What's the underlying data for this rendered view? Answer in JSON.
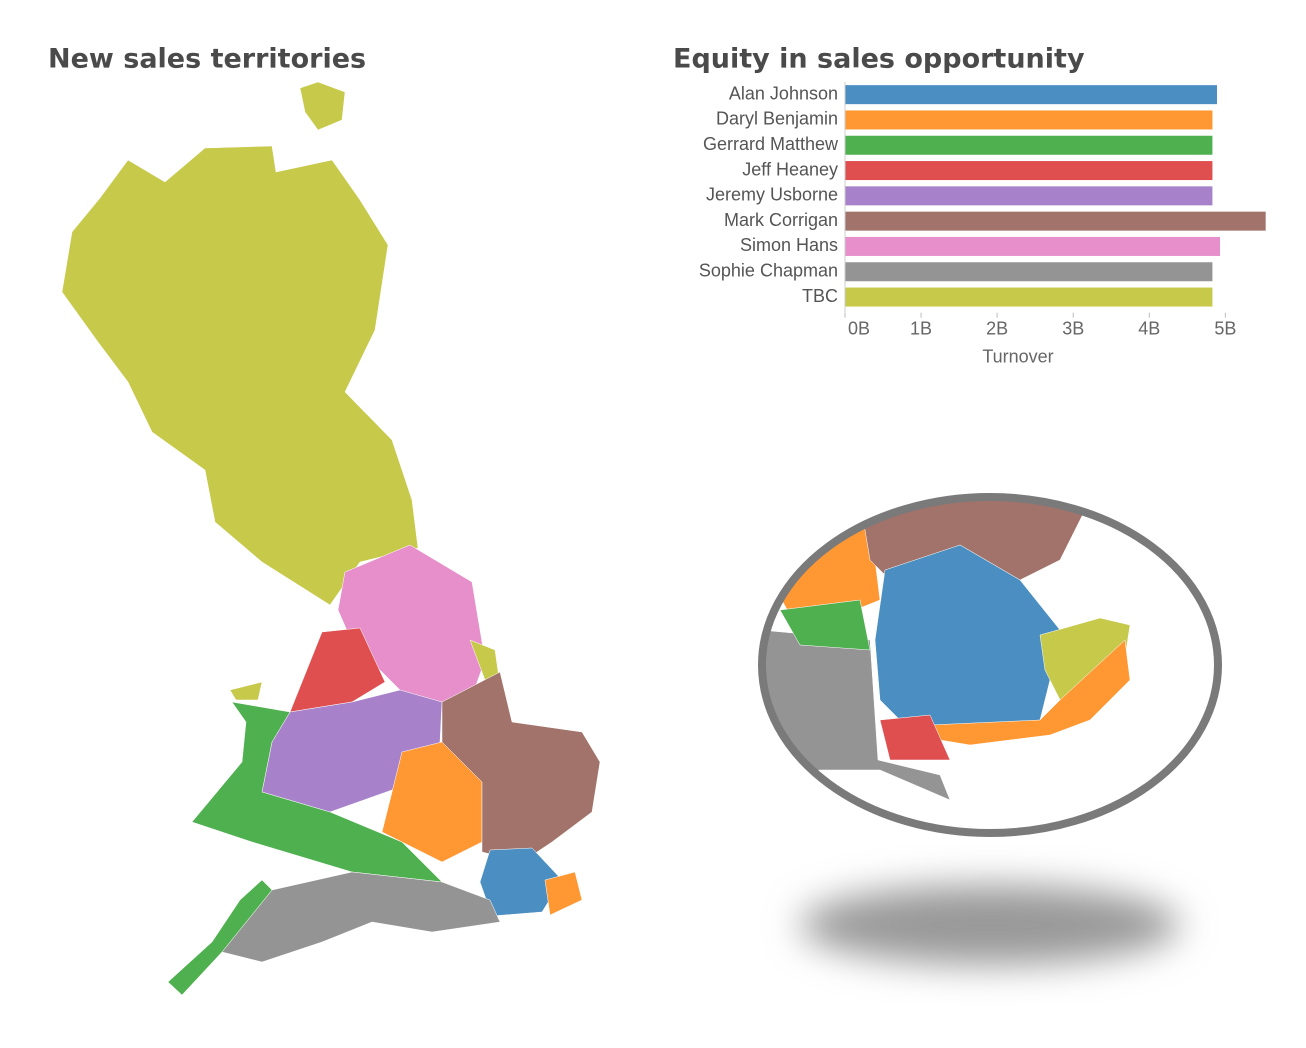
{
  "chart_data": [
    {
      "type": "map",
      "title": "New sales territories"
    },
    {
      "type": "bar",
      "orientation": "horizontal",
      "title": "Equity in sales opportunity",
      "categories": [
        "Alan Johnson",
        "Daryl Benjamin",
        "Gerrard Matthew",
        "Jeff Heaney",
        "Jeremy Usborne",
        "Mark Corrigan",
        "Simon Hans",
        "Sophie Chapman",
        "TBC"
      ],
      "values": [
        4.89,
        4.83,
        4.83,
        4.83,
        4.83,
        5.53,
        4.93,
        4.83,
        4.83
      ],
      "colors": [
        "#4a8ec2",
        "#ff9833",
        "#4fb04f",
        "#df4f50",
        "#a782ca",
        "#a2736a",
        "#e68fcb",
        "#949494",
        "#c7c94b"
      ],
      "xlabel": "Turnover",
      "xlim": [
        0,
        5.6
      ],
      "xticks": [
        {
          "value": 0,
          "label": "0B"
        },
        {
          "value": 1,
          "label": "1B"
        },
        {
          "value": 2,
          "label": "2B"
        },
        {
          "value": 3,
          "label": "3B"
        },
        {
          "value": 4,
          "label": "4B"
        },
        {
          "value": 5,
          "label": "5B"
        }
      ],
      "grid": false
    }
  ]
}
